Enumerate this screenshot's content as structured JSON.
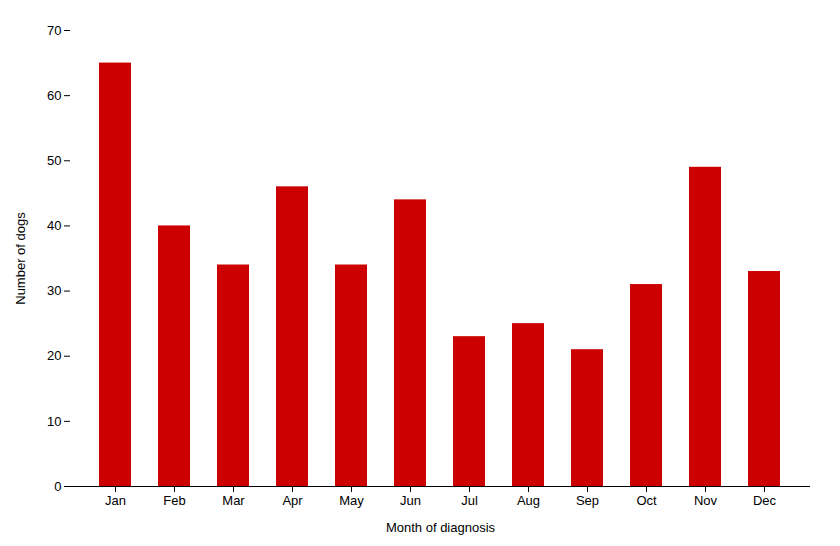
{
  "chart_data": {
    "type": "bar",
    "categories": [
      "Jan",
      "Feb",
      "Mar",
      "Apr",
      "May",
      "Jun",
      "Jul",
      "Aug",
      "Sep",
      "Oct",
      "Nov",
      "Dec"
    ],
    "values": [
      65,
      40,
      34,
      46,
      34,
      44,
      23,
      25,
      21,
      31,
      49,
      33
    ],
    "color": "#CC0000",
    "xlabel": "Month of diagnosis",
    "ylabel": "Number of dogs",
    "ylim": [
      0,
      70
    ],
    "yticks": [
      0,
      10,
      20,
      30,
      40,
      50,
      60,
      70
    ],
    "grid": false
  }
}
